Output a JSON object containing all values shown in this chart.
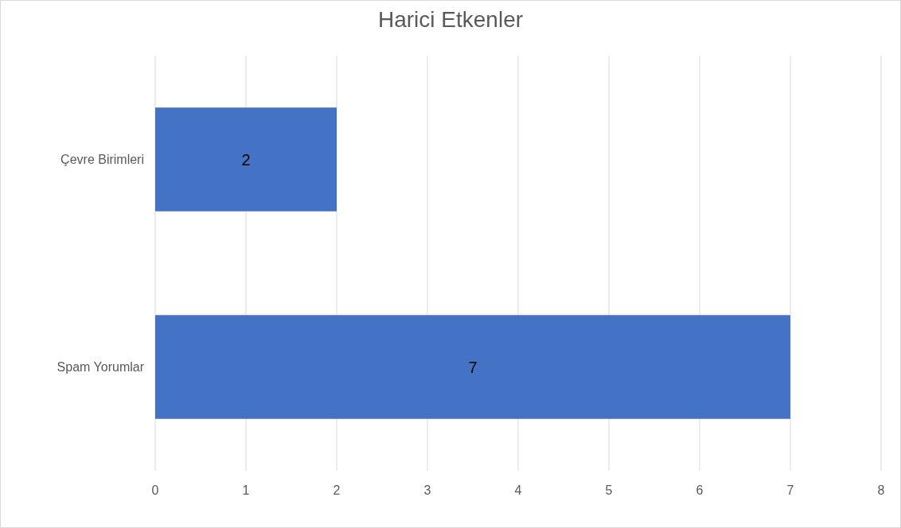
{
  "chart_data": {
    "type": "bar",
    "orientation": "horizontal",
    "title": "Harici Etkenler",
    "categories": [
      "Çevre Birimleri",
      "Spam Yorumlar"
    ],
    "values": [
      2,
      7
    ],
    "color": "#4472c4",
    "xlim": [
      0,
      8
    ],
    "xticks": [
      0,
      1,
      2,
      3,
      4,
      5,
      6,
      7,
      8
    ],
    "grid": "x",
    "data_labels": true
  }
}
